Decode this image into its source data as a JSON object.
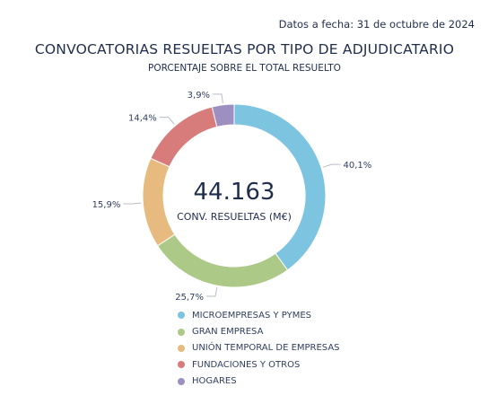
{
  "header": {
    "date_label": "Datos a fecha: 31 de octubre de 2024",
    "title": "CONVOCATORIAS RESUELTAS POR TIPO DE ADJUDICATARIO",
    "subtitle": "PORCENTAJE SOBRE EL TOTAL RESUELTO"
  },
  "center": {
    "value": "44.163",
    "label": "CONV. RESUELTAS (M€)"
  },
  "chart_data": {
    "type": "pie",
    "donut": true,
    "categories": [
      "MICROEMPRESAS Y PYMES",
      "GRAN EMPRESA",
      "UNIÓN TEMPORAL DE EMPRESAS",
      "FUNDACIONES Y OTROS",
      "HOGARES"
    ],
    "values": [
      40.1,
      25.7,
      15.9,
      14.4,
      3.9
    ],
    "data_labels": [
      "40,1%",
      "25,7%",
      "15,9%",
      "14,4%",
      "3,9%"
    ],
    "colors": [
      "#7cc4e0",
      "#acc988",
      "#e7bb80",
      "#d87b7b",
      "#9d8fc0"
    ],
    "legend_position": "bottom"
  }
}
